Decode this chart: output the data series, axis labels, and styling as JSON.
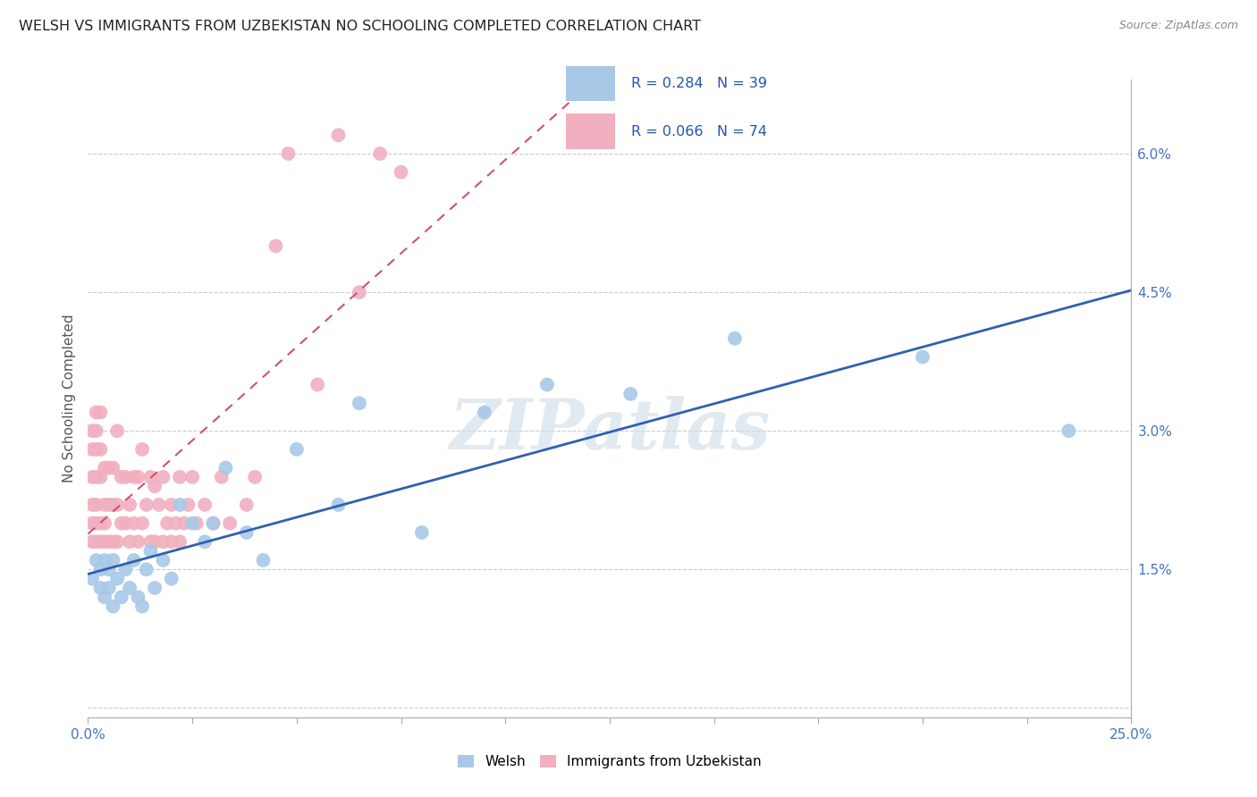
{
  "title": "WELSH VS IMMIGRANTS FROM UZBEKISTAN NO SCHOOLING COMPLETED CORRELATION CHART",
  "source": "Source: ZipAtlas.com",
  "ylabel": "No Schooling Completed",
  "xlim": [
    0.0,
    0.25
  ],
  "ylim": [
    -0.001,
    0.068
  ],
  "yticks": [
    0.0,
    0.015,
    0.03,
    0.045,
    0.06
  ],
  "ytick_labels": [
    "",
    "1.5%",
    "3.0%",
    "4.5%",
    "6.0%"
  ],
  "xticks": [
    0.0,
    0.025,
    0.05,
    0.075,
    0.1,
    0.125,
    0.15,
    0.175,
    0.2,
    0.225,
    0.25
  ],
  "welsh_r": 0.284,
  "welsh_n": 39,
  "uzbek_r": 0.066,
  "uzbek_n": 74,
  "welsh_color": "#a8c8e8",
  "uzbek_color": "#f0b0c0",
  "welsh_line_color": "#3060b0",
  "uzbek_line_color": "#d05070",
  "watermark": "ZIPatlas",
  "welsh_x": [
    0.001,
    0.002,
    0.003,
    0.003,
    0.004,
    0.004,
    0.005,
    0.005,
    0.006,
    0.006,
    0.007,
    0.008,
    0.009,
    0.01,
    0.011,
    0.012,
    0.013,
    0.014,
    0.015,
    0.016,
    0.018,
    0.02,
    0.022,
    0.025,
    0.028,
    0.03,
    0.033,
    0.038,
    0.042,
    0.05,
    0.06,
    0.065,
    0.08,
    0.095,
    0.11,
    0.13,
    0.155,
    0.2,
    0.235
  ],
  "welsh_y": [
    0.014,
    0.016,
    0.015,
    0.013,
    0.016,
    0.012,
    0.015,
    0.013,
    0.016,
    0.011,
    0.014,
    0.012,
    0.015,
    0.013,
    0.016,
    0.012,
    0.011,
    0.015,
    0.017,
    0.013,
    0.016,
    0.014,
    0.022,
    0.02,
    0.018,
    0.02,
    0.026,
    0.019,
    0.016,
    0.028,
    0.022,
    0.033,
    0.019,
    0.032,
    0.035,
    0.034,
    0.04,
    0.038,
    0.03
  ],
  "uzbek_x": [
    0.001,
    0.001,
    0.001,
    0.001,
    0.001,
    0.001,
    0.002,
    0.002,
    0.002,
    0.002,
    0.002,
    0.002,
    0.002,
    0.003,
    0.003,
    0.003,
    0.003,
    0.003,
    0.004,
    0.004,
    0.004,
    0.004,
    0.005,
    0.005,
    0.005,
    0.006,
    0.006,
    0.006,
    0.007,
    0.007,
    0.007,
    0.008,
    0.008,
    0.009,
    0.009,
    0.01,
    0.01,
    0.011,
    0.011,
    0.012,
    0.012,
    0.013,
    0.013,
    0.014,
    0.015,
    0.015,
    0.016,
    0.016,
    0.017,
    0.018,
    0.018,
    0.019,
    0.02,
    0.02,
    0.021,
    0.022,
    0.022,
    0.023,
    0.024,
    0.025,
    0.026,
    0.028,
    0.03,
    0.032,
    0.034,
    0.038,
    0.04,
    0.045,
    0.048,
    0.055,
    0.06,
    0.065,
    0.07,
    0.075
  ],
  "uzbek_y": [
    0.018,
    0.02,
    0.022,
    0.025,
    0.028,
    0.03,
    0.018,
    0.02,
    0.022,
    0.025,
    0.028,
    0.03,
    0.032,
    0.018,
    0.02,
    0.025,
    0.028,
    0.032,
    0.018,
    0.02,
    0.022,
    0.026,
    0.018,
    0.022,
    0.026,
    0.018,
    0.022,
    0.026,
    0.018,
    0.022,
    0.03,
    0.02,
    0.025,
    0.02,
    0.025,
    0.018,
    0.022,
    0.02,
    0.025,
    0.018,
    0.025,
    0.02,
    0.028,
    0.022,
    0.018,
    0.025,
    0.018,
    0.024,
    0.022,
    0.018,
    0.025,
    0.02,
    0.018,
    0.022,
    0.02,
    0.018,
    0.025,
    0.02,
    0.022,
    0.025,
    0.02,
    0.022,
    0.02,
    0.025,
    0.02,
    0.022,
    0.025,
    0.05,
    0.06,
    0.035,
    0.062,
    0.045,
    0.06,
    0.058
  ]
}
